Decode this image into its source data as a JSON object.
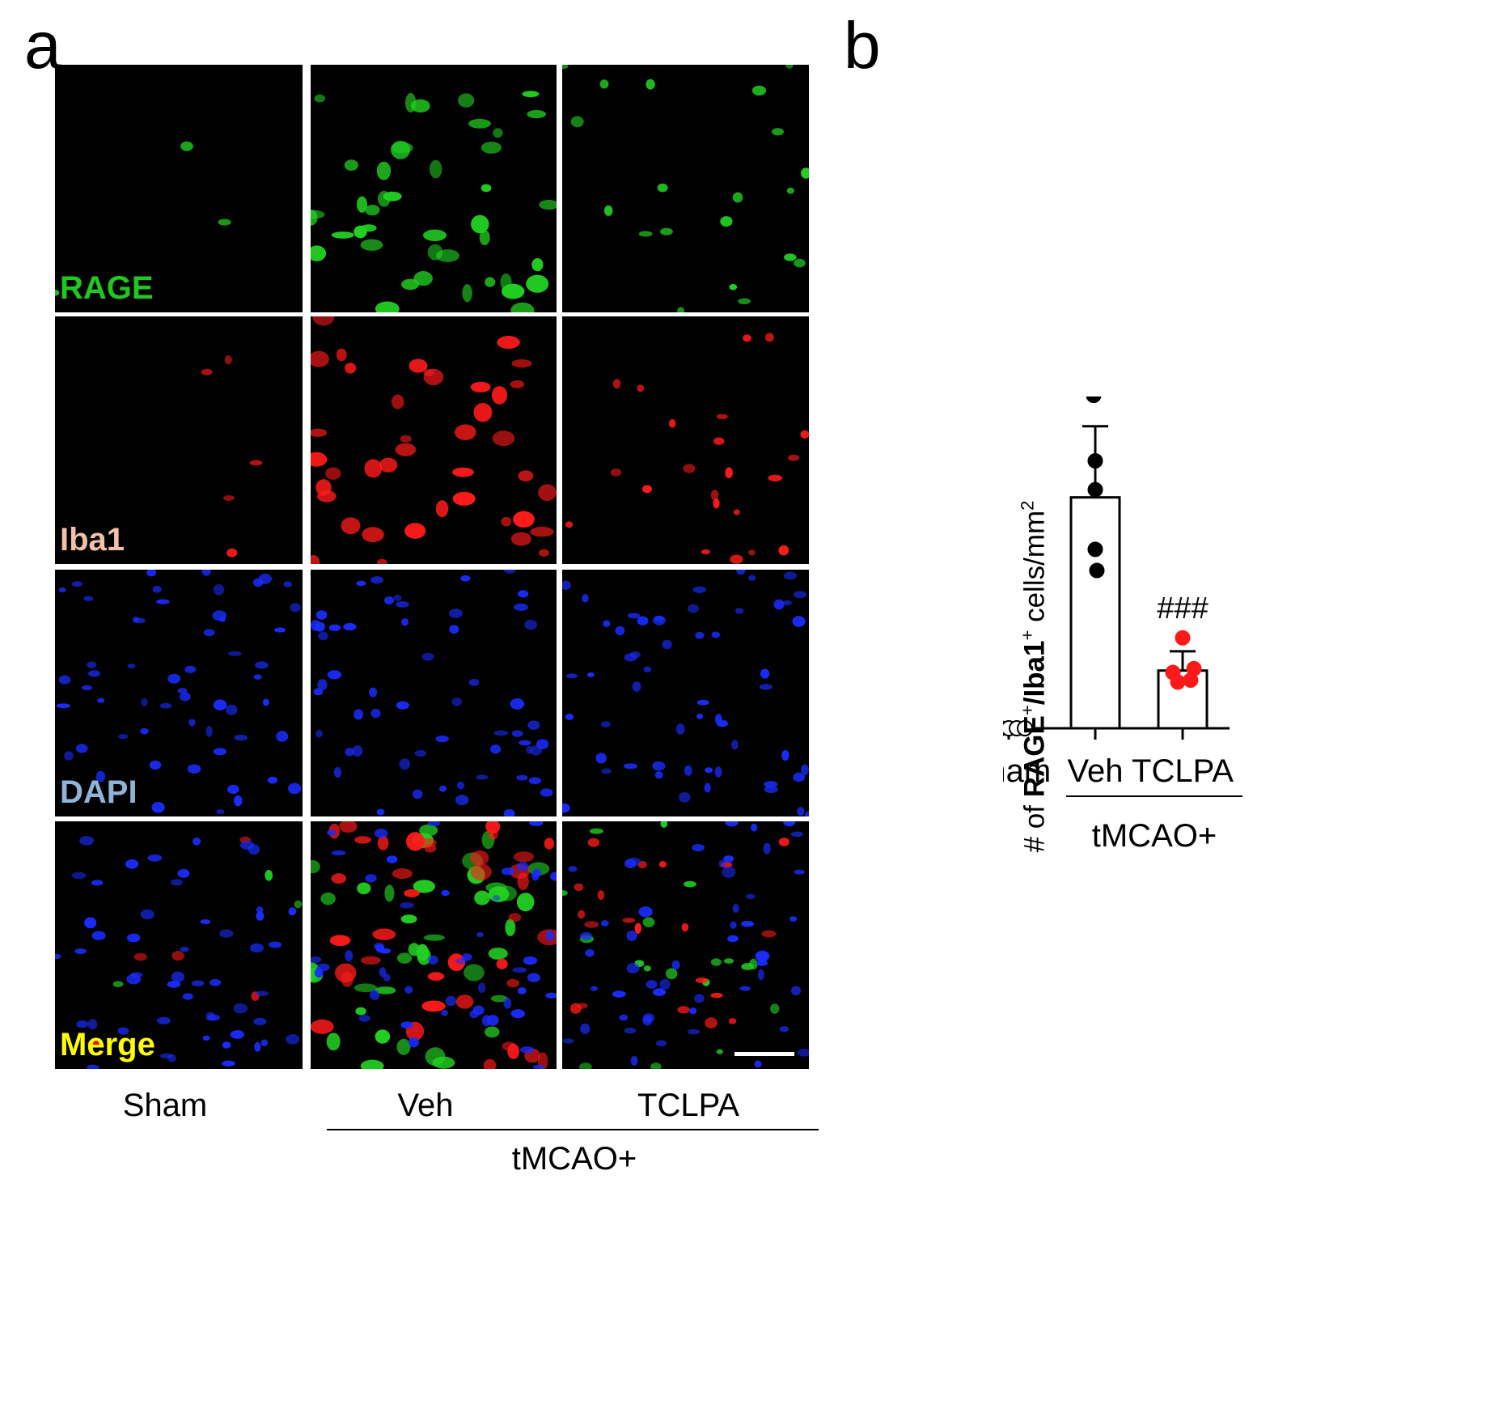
{
  "panel_a": {
    "letter": "a",
    "channels": [
      {
        "label": "RAGE",
        "color": "#1ec81e"
      },
      {
        "label": "Iba1",
        "color": "#f2c1a6"
      },
      {
        "label": "DAPI",
        "color": "#8fb3d9"
      },
      {
        "label": "Merge",
        "color": "#ffff00"
      }
    ],
    "columns": [
      "Sham",
      "Veh",
      "TCLPA"
    ],
    "group_label": "tMCAO+"
  },
  "panel_b": {
    "letter": "b",
    "ylabel_parts": {
      "prefix": "# of ",
      "rage": "RAGE",
      "plus1": "+",
      "slash": "/",
      "iba": "Iba1",
      "plus2": "+",
      "suffix": " cells/mm",
      "sq": "2"
    },
    "group_label": "tMCAO+"
  },
  "chart_data": {
    "type": "bar",
    "categories": [
      "Sham",
      "Veh",
      "TCLPA"
    ],
    "values": [
      0,
      120,
      30
    ],
    "errors": [
      0,
      37,
      10
    ],
    "points": [
      [
        0,
        0,
        0,
        0,
        0
      ],
      [
        173,
        139,
        124,
        93,
        82
      ],
      [
        47,
        31,
        29,
        25,
        24
      ]
    ],
    "point_colors": [
      "#ffffff",
      "#000000",
      "#ff1a1a"
    ],
    "annotations": [
      "",
      "***",
      "###"
    ],
    "yticks": [
      0,
      45,
      90,
      135,
      180
    ],
    "ylim": [
      0,
      180
    ],
    "xlabel": "",
    "ylabel": "# of RAGE+/Iba1+ cells/mm2"
  }
}
